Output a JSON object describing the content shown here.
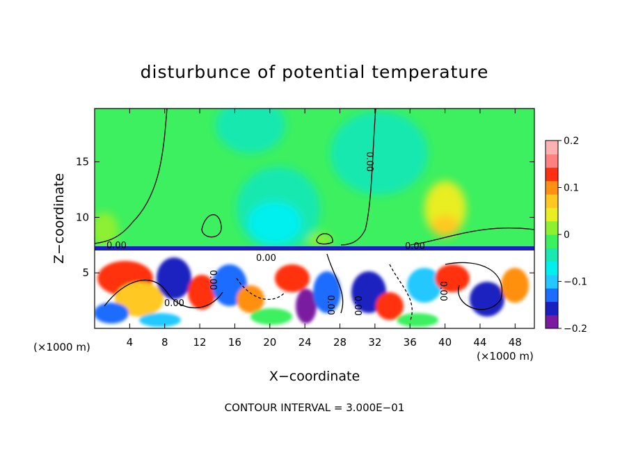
{
  "chart_data": {
    "type": "heatmap",
    "title": "disturbunce of potential temperature",
    "xlabel": "X−coordinate",
    "ylabel": "Z−coordinate",
    "x_unit": "(×1000 m)",
    "x_unit_right": "(×1000 m)",
    "xlim": [
      0,
      50.2
    ],
    "ylim": [
      0,
      19.8
    ],
    "x_ticks": [
      4,
      8,
      12,
      16,
      20,
      24,
      28,
      32,
      36,
      40,
      44,
      48
    ],
    "y_ticks": [
      5,
      10,
      15
    ],
    "colorbar": {
      "range": [
        -0.2,
        0.2
      ],
      "tick_values": [
        0.2,
        0.1,
        0,
        -0.1,
        -0.2
      ],
      "tick_labels": [
        "0.2",
        "0.1",
        "0",
        "−0.1",
        "−0.2"
      ],
      "colors": [
        "#7a1aa0",
        "#1a20c0",
        "#1e6cff",
        "#22c8ff",
        "#00f0f0",
        "#19e8b0",
        "#3cf060",
        "#8ef030",
        "#e8ee20",
        "#ffc820",
        "#ff9010",
        "#ff3010",
        "#ff8080",
        "#ffb0b0"
      ]
    },
    "contour_labels": [
      "0.00",
      "0.00",
      "0.00",
      "0.00",
      "0.00",
      "0.00",
      "0.00",
      "0.00",
      "0.00"
    ],
    "footer": "CONTOUR INTERVAL = 3.000E−01",
    "grid": false
  }
}
